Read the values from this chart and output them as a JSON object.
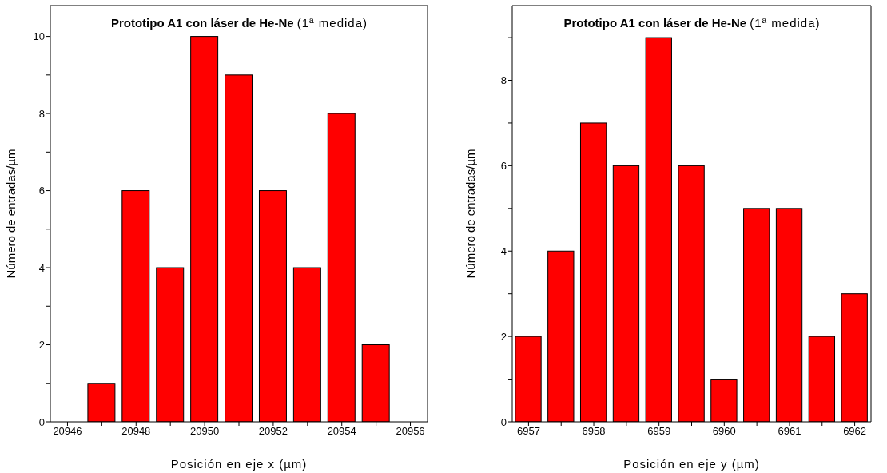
{
  "chart_data": [
    {
      "type": "histogram",
      "title": "Prototipo A1 con láser de He-Ne",
      "subtitle": "(1ª medida)",
      "xlabel": "Posición en eje x (µm)",
      "ylabel": "Número de entradas/µm",
      "bins": [
        20946.5,
        20947.5,
        20948.5,
        20949.5,
        20950.5,
        20951.5,
        20952.5,
        20953.5,
        20954.5,
        20955.5
      ],
      "values": [
        1,
        6,
        4,
        10,
        9,
        6,
        4,
        8,
        2
      ],
      "color": "#ff0000",
      "xlim": [
        20945.5,
        20956.5
      ],
      "xticks": [
        20946,
        {
          "value": 20947,
          "label": null
        },
        20948,
        {
          "value": 20949,
          "label": null
        },
        20950,
        {
          "value": 20951,
          "label": null
        },
        20952,
        {
          "value": 20953,
          "label": null
        },
        20954,
        {
          "value": 20955,
          "label": null
        },
        20956
      ],
      "ylim": [
        0,
        10.8
      ],
      "yticks": [
        0,
        {
          "value": 1,
          "label": null
        },
        2,
        {
          "value": 3,
          "label": null
        },
        4,
        {
          "value": 5,
          "label": null
        },
        6,
        {
          "value": 7,
          "label": null
        },
        8,
        {
          "value": 9,
          "label": null
        },
        10
      ]
    },
    {
      "type": "histogram",
      "title": "Prototipo A1 con láser de He-Ne",
      "subtitle": "(1ª medida)",
      "xlabel": "Posición en eje y (µm)",
      "ylabel": "Número de entradas/µm",
      "bins": [
        6956.75,
        6957.25,
        6957.75,
        6958.25,
        6958.75,
        6959.25,
        6959.75,
        6960.25,
        6960.75,
        6961.25,
        6961.75,
        6962.25
      ],
      "values": [
        2,
        4,
        7,
        6,
        9,
        6,
        1,
        5,
        5,
        2,
        3
      ],
      "color": "#ff0000",
      "xlim": [
        6956.75,
        6962.25
      ],
      "xticks": [
        6957,
        {
          "value": 6957.5,
          "label": null
        },
        6958,
        {
          "value": 6958.5,
          "label": null
        },
        6959,
        {
          "value": 6959.5,
          "label": null
        },
        6960,
        {
          "value": 6960.5,
          "label": null
        },
        6961,
        {
          "value": 6961.5,
          "label": null
        },
        6962
      ],
      "ylim": [
        0,
        9.75
      ],
      "yticks": [
        0,
        {
          "value": 1,
          "label": null
        },
        2,
        {
          "value": 3,
          "label": null
        },
        4,
        {
          "value": 5,
          "label": null
        },
        6,
        {
          "value": 7,
          "label": null
        },
        8,
        {
          "value": 9,
          "label": null
        }
      ]
    }
  ]
}
